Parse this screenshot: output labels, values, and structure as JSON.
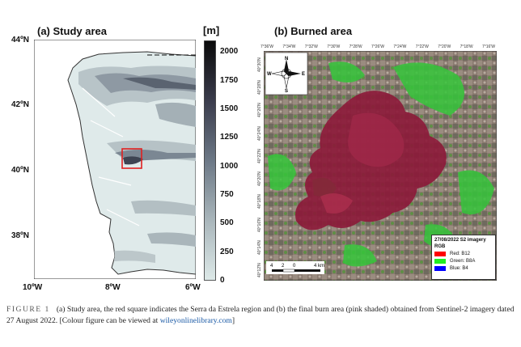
{
  "panel_a": {
    "title": "(a) Study area",
    "lat_labels": [
      "44ºN",
      "42ºN",
      "40ºN",
      "38ºN"
    ],
    "lon_labels": [
      "10ºW",
      "8ºW",
      "6ºW"
    ],
    "highlight_color": "#e02020"
  },
  "colorbar": {
    "unit": "[m]",
    "ticks": [
      "2000",
      "1750",
      "1500",
      "1250",
      "1000",
      "750",
      "500",
      "250",
      "0"
    ],
    "range": [
      0,
      2100
    ],
    "colors": [
      "#dde9e8",
      "#a9b6bb",
      "#6c7886",
      "#3a3c4c",
      "#0a0a0a"
    ]
  },
  "panel_b": {
    "title": "(b) Burned area",
    "top_degrees": [
      "7°36'W",
      "7°34'W",
      "7°32'W",
      "7°30'W",
      "7°28'W",
      "7°26'W",
      "7°24'W",
      "7°22'W",
      "7°20'W",
      "7°18'W",
      "7°16'W"
    ],
    "left_degrees": [
      "40°30'N",
      "40°28'N",
      "40°26'N",
      "40°24'N",
      "40°22'N",
      "40°20'N",
      "40°18'N",
      "40°16'N",
      "40°14'N",
      "40°12'N"
    ],
    "compass": {
      "north": "N",
      "south": "S",
      "east": "E",
      "west": "W"
    },
    "scale_labels": [
      "4",
      "2",
      "0",
      "4 km"
    ],
    "legend": {
      "title": "27/08/2022 S2 imagery",
      "subtitle": "RGB",
      "items": [
        {
          "label": "Red:   B12",
          "color": "#ff0000"
        },
        {
          "label": "Green: B8A",
          "color": "#22ee22"
        },
        {
          "label": "Blue:  B4",
          "color": "#0000ff"
        }
      ]
    }
  },
  "caption": {
    "figure_label": "FIGURE 1",
    "text": "(a) Study area, the red square indicates the Serra da Estrela region and (b) the final burn area (pink shaded) obtained from Sentinel-2 imagery dated 27 August 2022. [Colour figure can be viewed at ",
    "link": "wileyonlinelibrary.com",
    "end": "]"
  }
}
